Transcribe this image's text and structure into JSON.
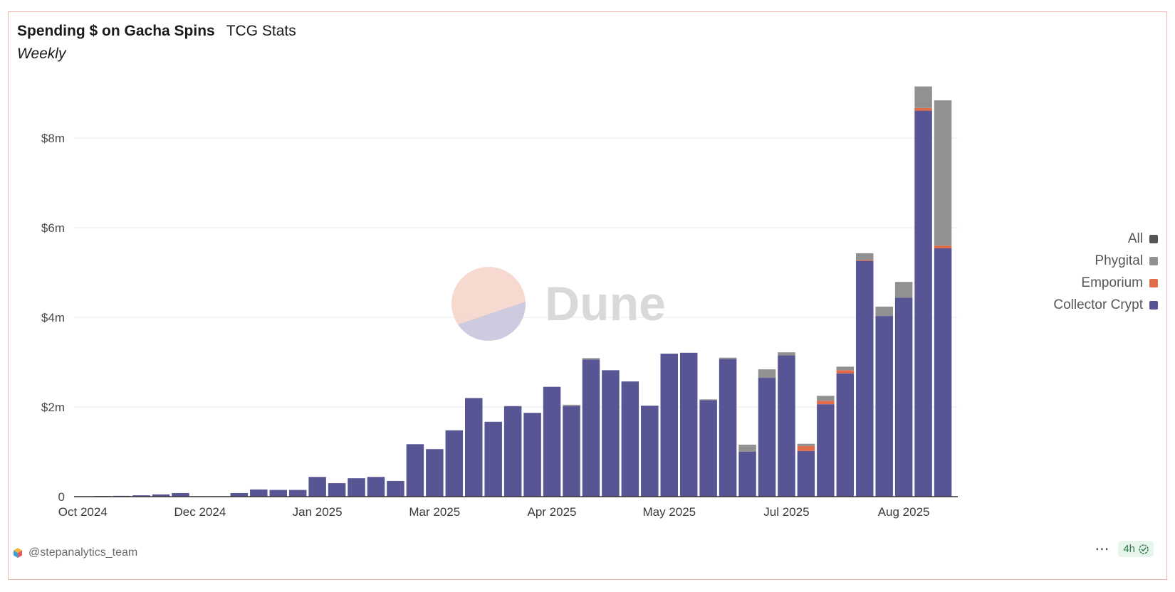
{
  "header": {
    "title": "Spending $ on Gacha Spins",
    "subtitle_inline": "TCG Stats",
    "subtitle": "Weekly"
  },
  "watermark": "Dune",
  "footer": {
    "user": "@stepanalytics_team",
    "more_label": "⋯",
    "refresh_label": "4h"
  },
  "colors": {
    "collector_crypt": "#585594",
    "emporium": "#e06c4a",
    "phygital": "#919191",
    "all": "#555555",
    "grid": "#ebebeb",
    "axis": "#333333"
  },
  "chart_data": {
    "type": "bar",
    "stacked": true,
    "title": "Spending $ on Gacha Spins",
    "subtitle": "Weekly",
    "ylim": [
      0,
      9200000
    ],
    "yticks": [
      {
        "value": 0,
        "label": "0"
      },
      {
        "value": 2000000,
        "label": "$2m"
      },
      {
        "value": 4000000,
        "label": "$4m"
      },
      {
        "value": 6000000,
        "label": "$6m"
      },
      {
        "value": 8000000,
        "label": "$8m"
      }
    ],
    "grid": true,
    "legend_position": "right",
    "legend": [
      "All",
      "Phygital",
      "Emporium",
      "Collector Crypt"
    ],
    "x_labels": [
      "Oct 2024",
      "Dec 2024",
      "Jan 2025",
      "Mar 2025",
      "Apr 2025",
      "May 2025",
      "Jul 2025",
      "Aug 2025"
    ],
    "x_label_week_index": [
      0,
      6,
      12,
      18,
      24,
      30,
      36,
      42
    ],
    "series": [
      {
        "name": "Collector Crypt",
        "color_key": "collector_crypt",
        "values": [
          10000,
          15000,
          18000,
          30000,
          50000,
          80000,
          10000,
          10000,
          80000,
          160000,
          150000,
          150000,
          440000,
          300000,
          410000,
          440000,
          350000,
          1170000,
          1060000,
          1480000,
          2200000,
          1670000,
          2020000,
          1870000,
          2450000,
          2020000,
          3060000,
          2820000,
          2570000,
          2030000,
          3190000,
          3210000,
          2150000,
          3070000,
          1000000,
          2650000,
          3150000,
          1020000,
          2060000,
          2750000,
          5260000,
          4030000,
          4440000,
          8610000,
          5540000
        ]
      },
      {
        "name": "Emporium",
        "color_key": "emporium",
        "values": [
          0,
          0,
          0,
          0,
          0,
          0,
          0,
          0,
          0,
          0,
          0,
          0,
          0,
          0,
          0,
          0,
          0,
          0,
          0,
          0,
          0,
          0,
          0,
          0,
          0,
          0,
          0,
          0,
          0,
          0,
          0,
          0,
          0,
          0,
          0,
          0,
          0,
          110000,
          80000,
          70000,
          20000,
          0,
          0,
          60000,
          60000
        ]
      },
      {
        "name": "Phygital",
        "color_key": "phygital",
        "values": [
          0,
          0,
          0,
          0,
          0,
          0,
          0,
          0,
          0,
          0,
          0,
          0,
          0,
          0,
          0,
          0,
          0,
          0,
          0,
          0,
          0,
          0,
          0,
          0,
          0,
          30000,
          30000,
          0,
          0,
          0,
          0,
          0,
          20000,
          30000,
          160000,
          190000,
          70000,
          50000,
          110000,
          80000,
          150000,
          210000,
          350000,
          480000,
          3240000
        ]
      },
      {
        "name": "All",
        "color_key": "all",
        "values": [
          0,
          0,
          0,
          0,
          0,
          0,
          0,
          0,
          0,
          0,
          0,
          0,
          0,
          0,
          0,
          0,
          0,
          0,
          0,
          0,
          0,
          0,
          0,
          0,
          0,
          0,
          0,
          0,
          0,
          0,
          0,
          0,
          0,
          0,
          0,
          0,
          0,
          0,
          0,
          0,
          0,
          0,
          0,
          0,
          0
        ]
      }
    ]
  }
}
